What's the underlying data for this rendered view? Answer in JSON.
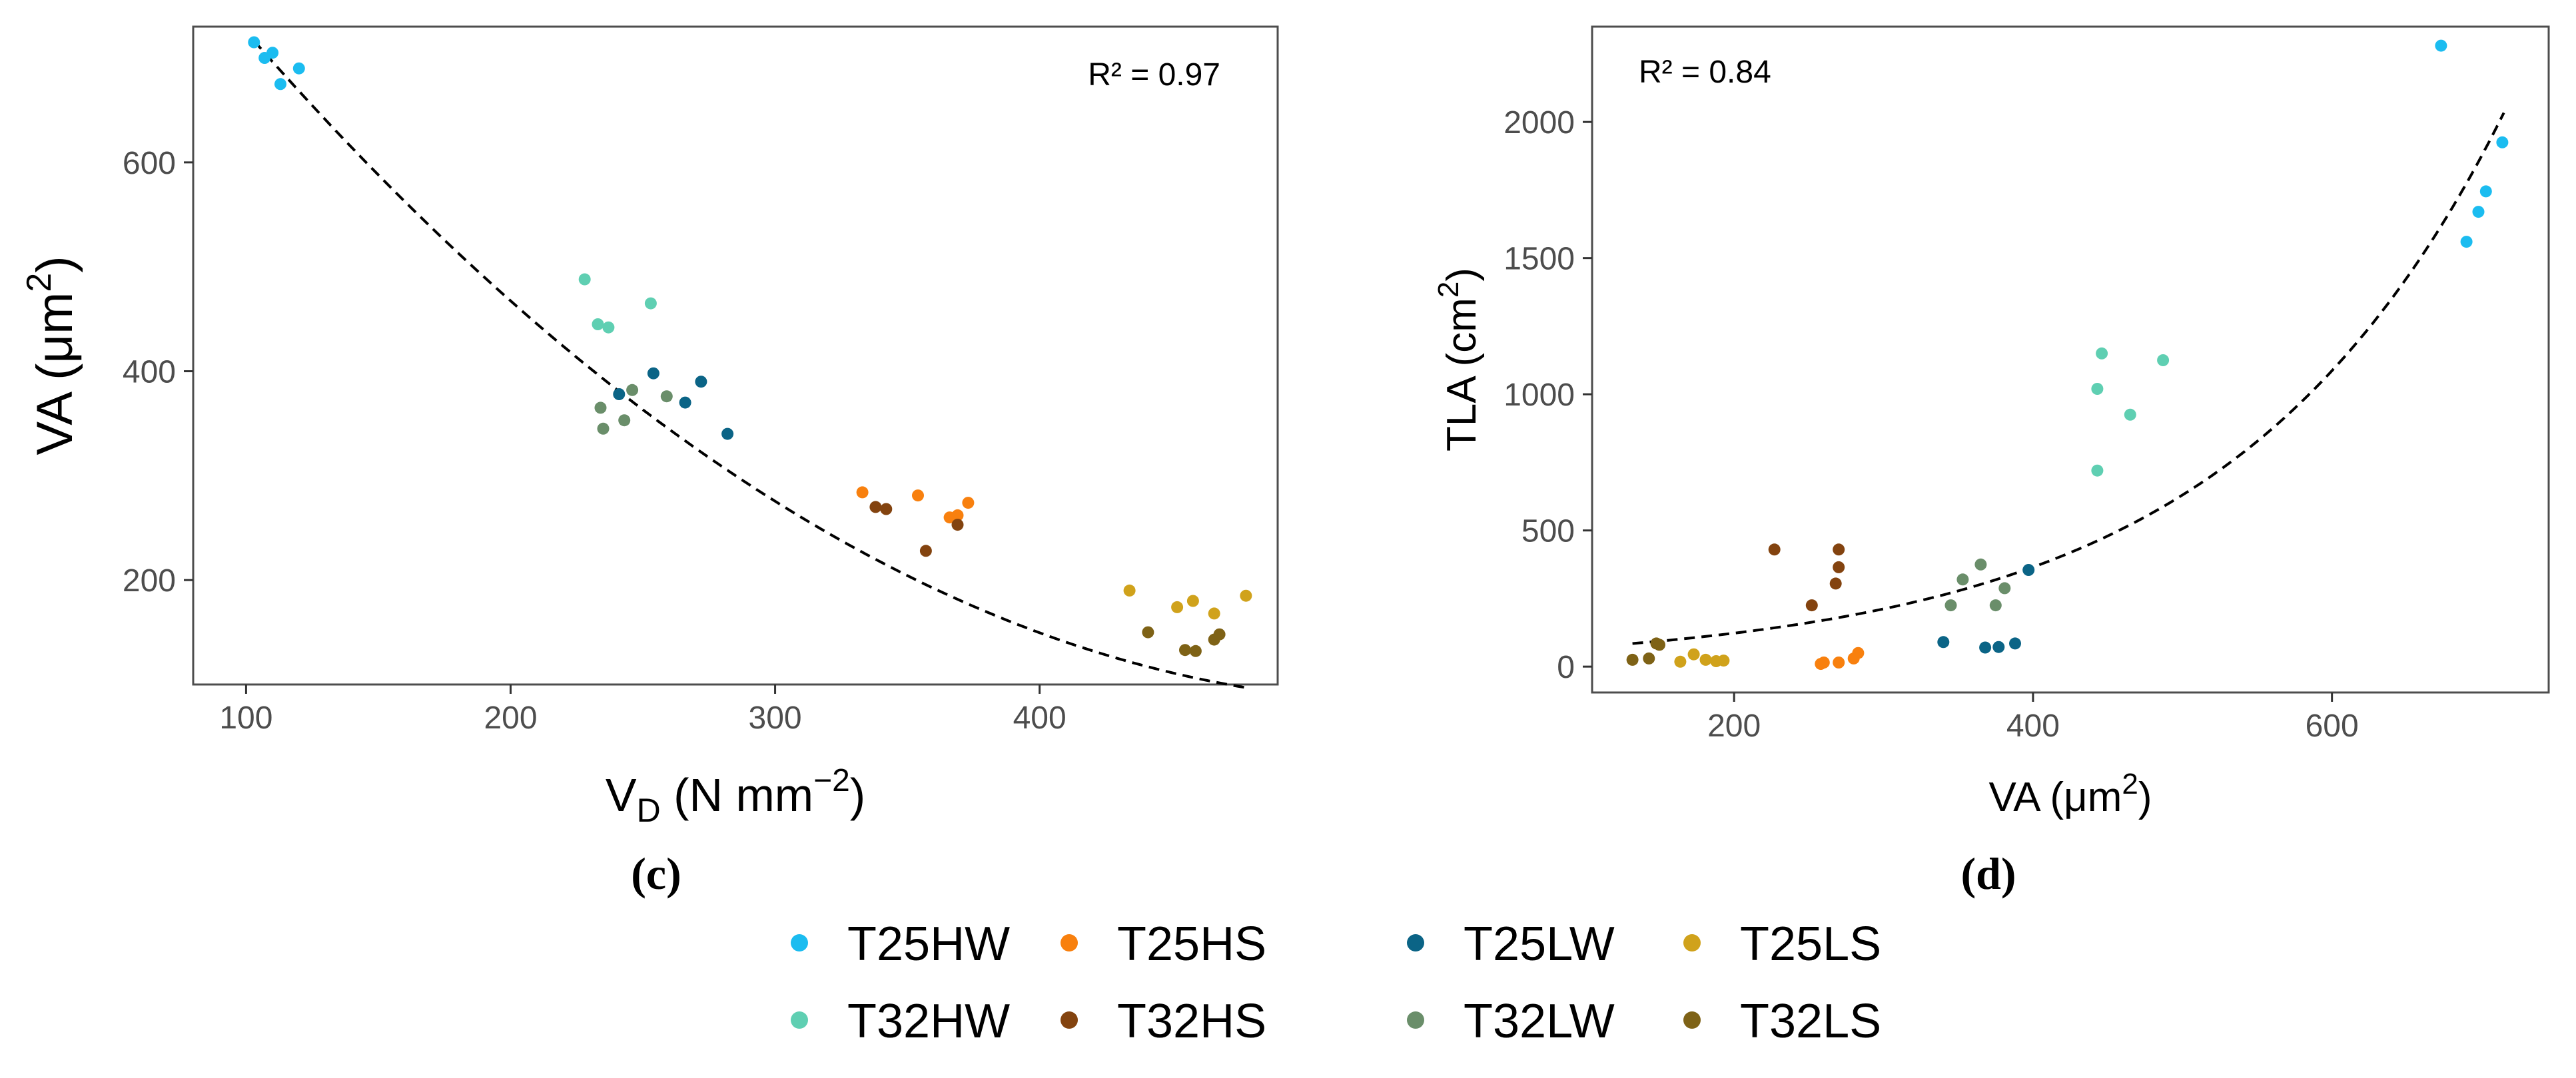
{
  "chart_data": [
    {
      "type": "scatter",
      "panel_label": "(c)",
      "annotation": "R² = 0.97",
      "xlabel": {
        "main": "V",
        "sub": "D",
        "rest": " (N mm",
        "sup": "−2",
        "close": ")"
      },
      "ylabel": {
        "main": "VA (μm",
        "sup": "2",
        "close": ")"
      },
      "xlim": [
        80,
        490
      ],
      "ylim": [
        100,
        730
      ],
      "xticks": [
        100,
        200,
        300,
        400
      ],
      "yticks": [
        200,
        400,
        600
      ],
      "grid": false,
      "fit": {
        "type": "quadratic",
        "a": 0.003294,
        "b": -3.5655,
        "c": 1048.7,
        "x_range": [
          103,
          478
        ]
      },
      "series": [
        {
          "name": "T25HW",
          "points": [
            [
              103,
              715
            ],
            [
              107,
              700
            ],
            [
              110,
              705
            ],
            [
              113,
              675
            ],
            [
              120,
              690
            ]
          ]
        },
        {
          "name": "T32HW",
          "points": [
            [
              228,
              488
            ],
            [
              233,
              445
            ],
            [
              237,
              442
            ],
            [
              253,
              465
            ]
          ]
        },
        {
          "name": "T25LW",
          "points": [
            [
              241,
              378
            ],
            [
              254,
              398
            ],
            [
              266,
              370
            ],
            [
              272,
              390
            ],
            [
              282,
              340
            ]
          ]
        },
        {
          "name": "T32LW",
          "points": [
            [
              234,
              365
            ],
            [
              235,
              345
            ],
            [
              243,
              353
            ],
            [
              246,
              382
            ],
            [
              259,
              376
            ]
          ]
        },
        {
          "name": "T25HS",
          "points": [
            [
              333,
              284
            ],
            [
              354,
              281
            ],
            [
              366,
              260
            ],
            [
              369,
              262
            ],
            [
              373,
              274
            ]
          ]
        },
        {
          "name": "T32HS",
          "points": [
            [
              338,
              270
            ],
            [
              342,
              268
            ],
            [
              357,
              228
            ],
            [
              369,
              253
            ]
          ]
        },
        {
          "name": "T25LS",
          "points": [
            [
              434,
              190
            ],
            [
              452,
              174
            ],
            [
              458,
              180
            ],
            [
              466,
              168
            ],
            [
              478,
              185
            ]
          ]
        },
        {
          "name": "T32LS",
          "points": [
            [
              441,
              150
            ],
            [
              455,
              133
            ],
            [
              459,
              132
            ],
            [
              466,
              143
            ],
            [
              468,
              148
            ]
          ]
        }
      ]
    },
    {
      "type": "scatter",
      "panel_label": "(d)",
      "annotation": "R² = 0.84",
      "xlabel": {
        "main": "VA (μm",
        "sup": "2",
        "close": ")"
      },
      "ylabel": {
        "main": "TLA (cm",
        "sup": "2",
        "close": ")"
      },
      "xlim": [
        105,
        745
      ],
      "ylim": [
        -95,
        2350
      ],
      "xticks": [
        200,
        400,
        600
      ],
      "yticks": [
        0,
        500,
        1000,
        1500,
        2000
      ],
      "grid": false,
      "fit": {
        "type": "exponential",
        "a": 41.3,
        "b": 0.00545,
        "x_range": [
          132,
          715
        ]
      },
      "series": [
        {
          "name": "T25HW",
          "points": [
            [
              673,
              2280
            ],
            [
              690,
              1560
            ],
            [
              698,
              1670
            ],
            [
              703,
              1745
            ],
            [
              714,
              1925
            ]
          ]
        },
        {
          "name": "T32HW",
          "points": [
            [
              443,
              720
            ],
            [
              443,
              1020
            ],
            [
              446,
              1150
            ],
            [
              465,
              925
            ],
            [
              487,
              1125
            ]
          ]
        },
        {
          "name": "T25LW",
          "points": [
            [
              340,
              90
            ],
            [
              368,
              70
            ],
            [
              377,
              72
            ],
            [
              388,
              85
            ],
            [
              397,
              355
            ]
          ]
        },
        {
          "name": "T32LW",
          "points": [
            [
              345,
              225
            ],
            [
              353,
              320
            ],
            [
              365,
              375
            ],
            [
              375,
              225
            ],
            [
              381,
              288
            ]
          ]
        },
        {
          "name": "T25HS",
          "points": [
            [
              258,
              10
            ],
            [
              260,
              15
            ],
            [
              270,
              15
            ],
            [
              280,
              30
            ],
            [
              283,
              50
            ]
          ]
        },
        {
          "name": "T32HS",
          "points": [
            [
              227,
              430
            ],
            [
              252,
              225
            ],
            [
              268,
              305
            ],
            [
              270,
              365
            ],
            [
              270,
              430
            ]
          ]
        },
        {
          "name": "T25LS",
          "points": [
            [
              164,
              18
            ],
            [
              173,
              45
            ],
            [
              181,
              25
            ],
            [
              188,
              20
            ],
            [
              193,
              22
            ]
          ]
        },
        {
          "name": "T32LS",
          "points": [
            [
              132,
              25
            ],
            [
              143,
              30
            ],
            [
              148,
              85
            ],
            [
              150,
              80
            ]
          ]
        }
      ]
    }
  ],
  "legend": [
    {
      "name": "T25HW",
      "color": "#1bbcf0"
    },
    {
      "name": "T25HS",
      "color": "#f8800e"
    },
    {
      "name": "T25LW",
      "color": "#0b6486"
    },
    {
      "name": "T25LS",
      "color": "#d0a21b"
    },
    {
      "name": "T32HW",
      "color": "#5fcfb2"
    },
    {
      "name": "T32HS",
      "color": "#83430f"
    },
    {
      "name": "T32LW",
      "color": "#6a8e6a"
    },
    {
      "name": "T32LS",
      "color": "#7e6216"
    }
  ]
}
